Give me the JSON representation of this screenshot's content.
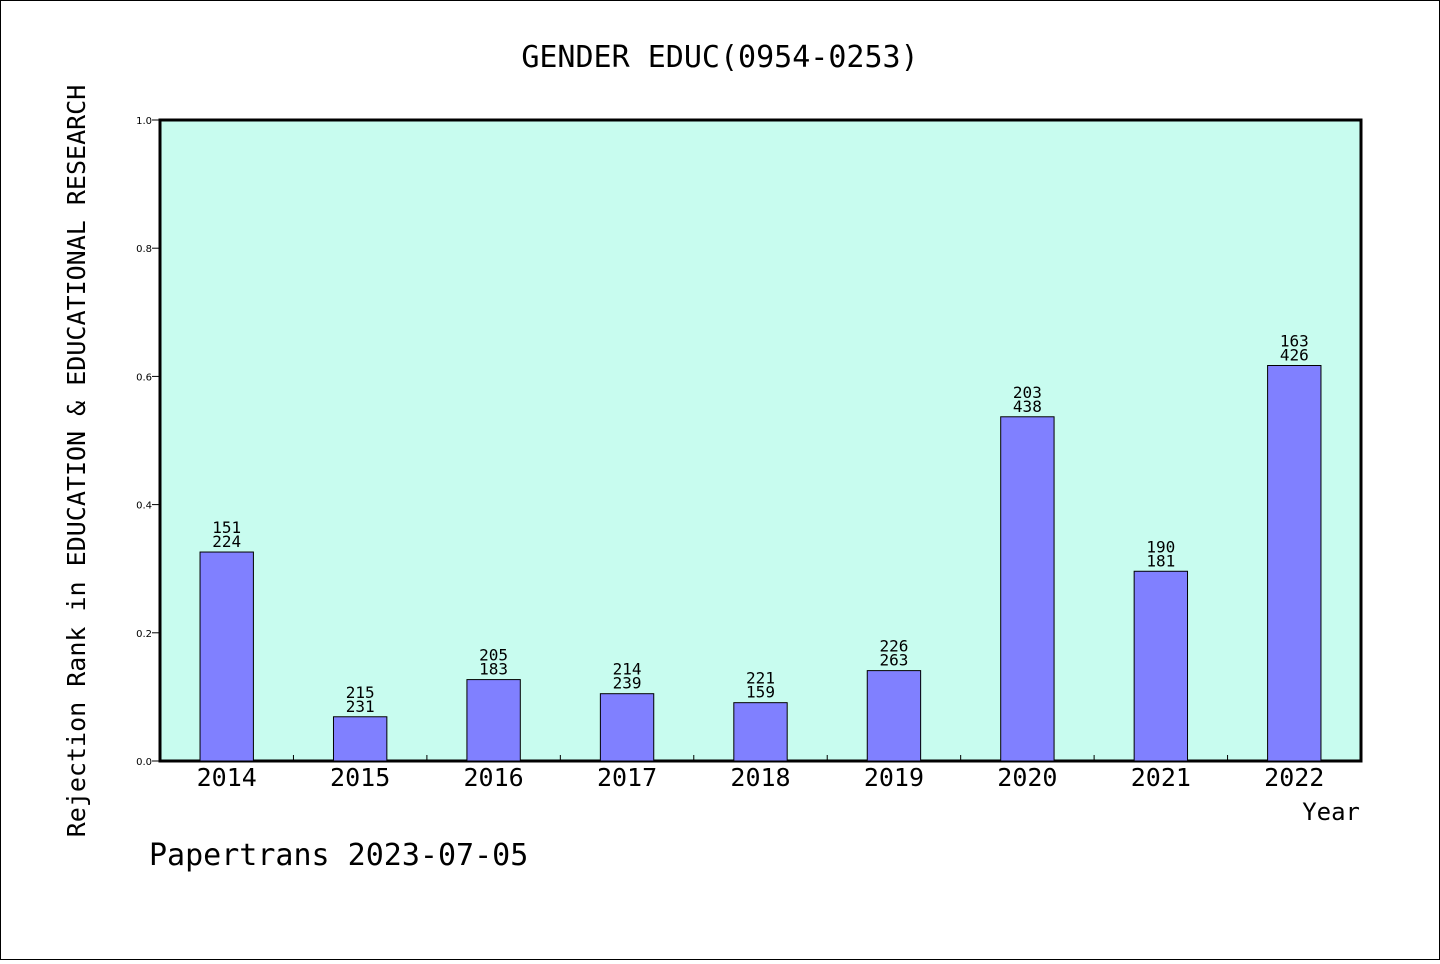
{
  "chart_data": {
    "type": "bar",
    "title": "GENDER EDUC(0954-0253)",
    "xlabel": "Year",
    "ylabel": "Rejection Rank in EDUCATION & EDUCATIONAL RESEARCH",
    "ylim": [
      0.0,
      1.0
    ],
    "yticks": [
      "0.0",
      "0.2",
      "0.4",
      "0.6",
      "0.8",
      "1.0"
    ],
    "categories": [
      "2014",
      "2015",
      "2016",
      "2017",
      "2018",
      "2019",
      "2020",
      "2021",
      "2022"
    ],
    "values": [
      0.326,
      0.069,
      0.127,
      0.105,
      0.091,
      0.141,
      0.537,
      0.296,
      0.617
    ],
    "labels_top": [
      "151",
      "215",
      "205",
      "214",
      "221",
      "226",
      "203",
      "190",
      "163"
    ],
    "labels_bottom": [
      "224",
      "231",
      "183",
      "239",
      "159",
      "263",
      "438",
      "181",
      "426"
    ],
    "grid": false,
    "colors": {
      "plot_background": "#c8fcef",
      "bar_fill": "#8080ff",
      "bar_stroke": "#000000"
    }
  },
  "footer": "Papertrans 2023-07-05"
}
